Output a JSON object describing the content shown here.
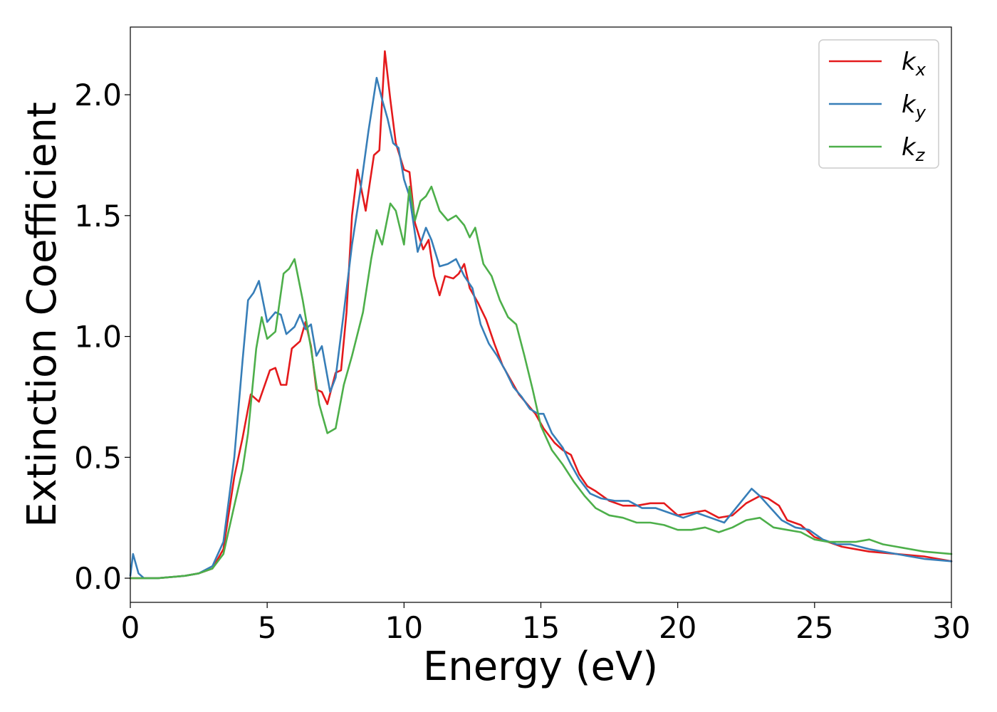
{
  "chart_data": {
    "type": "line",
    "xlabel": "Energy (eV)",
    "ylabel": "Extinction Coefficient",
    "xlim": [
      0,
      30
    ],
    "ylim": [
      -0.1,
      2.28
    ],
    "x_ticks": [
      "0",
      "5",
      "10",
      "15",
      "20",
      "25",
      "30"
    ],
    "x_tick_values": [
      0,
      5,
      10,
      15,
      20,
      25,
      30
    ],
    "y_ticks": [
      "0.0",
      "0.5",
      "1.0",
      "1.5",
      "2.0"
    ],
    "y_tick_values": [
      0,
      0.5,
      1.0,
      1.5,
      2.0
    ],
    "grid": false,
    "legend_position": "top-right",
    "series": [
      {
        "name": "k_x",
        "legend_base": "k",
        "legend_sub": "x",
        "color": "#e41a1c",
        "points": [
          [
            0,
            0.0
          ],
          [
            1,
            0.0
          ],
          [
            2,
            0.01
          ],
          [
            2.5,
            0.02
          ],
          [
            3,
            0.04
          ],
          [
            3.4,
            0.12
          ],
          [
            3.8,
            0.42
          ],
          [
            4.1,
            0.58
          ],
          [
            4.4,
            0.76
          ],
          [
            4.7,
            0.73
          ],
          [
            5.1,
            0.86
          ],
          [
            5.3,
            0.87
          ],
          [
            5.5,
            0.8
          ],
          [
            5.7,
            0.8
          ],
          [
            5.9,
            0.95
          ],
          [
            6.2,
            0.98
          ],
          [
            6.4,
            1.06
          ],
          [
            6.6,
            0.96
          ],
          [
            6.8,
            0.78
          ],
          [
            7.0,
            0.77
          ],
          [
            7.2,
            0.72
          ],
          [
            7.5,
            0.85
          ],
          [
            7.7,
            0.86
          ],
          [
            7.9,
            1.1
          ],
          [
            8.1,
            1.5
          ],
          [
            8.3,
            1.69
          ],
          [
            8.6,
            1.52
          ],
          [
            8.9,
            1.75
          ],
          [
            9.1,
            1.77
          ],
          [
            9.3,
            2.18
          ],
          [
            9.5,
            1.98
          ],
          [
            9.7,
            1.8
          ],
          [
            10.0,
            1.69
          ],
          [
            10.2,
            1.68
          ],
          [
            10.4,
            1.47
          ],
          [
            10.7,
            1.36
          ],
          [
            10.9,
            1.4
          ],
          [
            11.1,
            1.25
          ],
          [
            11.3,
            1.17
          ],
          [
            11.5,
            1.25
          ],
          [
            11.8,
            1.24
          ],
          [
            12.0,
            1.26
          ],
          [
            12.2,
            1.3
          ],
          [
            12.4,
            1.2
          ],
          [
            12.7,
            1.14
          ],
          [
            13.0,
            1.07
          ],
          [
            13.3,
            0.97
          ],
          [
            13.6,
            0.88
          ],
          [
            13.9,
            0.82
          ],
          [
            14.2,
            0.76
          ],
          [
            14.5,
            0.72
          ],
          [
            14.8,
            0.68
          ],
          [
            15.1,
            0.62
          ],
          [
            15.5,
            0.56
          ],
          [
            15.8,
            0.53
          ],
          [
            16.1,
            0.51
          ],
          [
            16.4,
            0.43
          ],
          [
            16.7,
            0.38
          ],
          [
            17.0,
            0.36
          ],
          [
            17.5,
            0.32
          ],
          [
            18.0,
            0.3
          ],
          [
            18.5,
            0.3
          ],
          [
            19.0,
            0.31
          ],
          [
            19.5,
            0.31
          ],
          [
            20.0,
            0.26
          ],
          [
            20.5,
            0.27
          ],
          [
            21.0,
            0.28
          ],
          [
            21.5,
            0.25
          ],
          [
            22.0,
            0.26
          ],
          [
            22.5,
            0.31
          ],
          [
            23.0,
            0.34
          ],
          [
            23.3,
            0.33
          ],
          [
            23.7,
            0.3
          ],
          [
            24.0,
            0.24
          ],
          [
            24.5,
            0.22
          ],
          [
            25.0,
            0.17
          ],
          [
            25.5,
            0.15
          ],
          [
            26.0,
            0.13
          ],
          [
            26.5,
            0.12
          ],
          [
            27.0,
            0.11
          ],
          [
            28.0,
            0.1
          ],
          [
            29.0,
            0.09
          ],
          [
            30.0,
            0.07
          ]
        ]
      },
      {
        "name": "k_y",
        "legend_base": "k",
        "legend_sub": "y",
        "color": "#377eb8",
        "points": [
          [
            0,
            0.01
          ],
          [
            0.1,
            0.1
          ],
          [
            0.3,
            0.02
          ],
          [
            0.5,
            0.0
          ],
          [
            1,
            0.0
          ],
          [
            2,
            0.01
          ],
          [
            2.5,
            0.02
          ],
          [
            3,
            0.05
          ],
          [
            3.4,
            0.15
          ],
          [
            3.8,
            0.5
          ],
          [
            4.1,
            0.9
          ],
          [
            4.3,
            1.15
          ],
          [
            4.5,
            1.18
          ],
          [
            4.7,
            1.23
          ],
          [
            5.0,
            1.06
          ],
          [
            5.3,
            1.1
          ],
          [
            5.5,
            1.09
          ],
          [
            5.7,
            1.01
          ],
          [
            6.0,
            1.04
          ],
          [
            6.2,
            1.09
          ],
          [
            6.4,
            1.03
          ],
          [
            6.6,
            1.05
          ],
          [
            6.8,
            0.92
          ],
          [
            7.0,
            0.96
          ],
          [
            7.3,
            0.77
          ],
          [
            7.5,
            0.83
          ],
          [
            7.8,
            1.1
          ],
          [
            8.1,
            1.38
          ],
          [
            8.4,
            1.6
          ],
          [
            8.7,
            1.85
          ],
          [
            9.0,
            2.07
          ],
          [
            9.2,
            1.98
          ],
          [
            9.4,
            1.9
          ],
          [
            9.6,
            1.8
          ],
          [
            9.8,
            1.78
          ],
          [
            10.0,
            1.65
          ],
          [
            10.2,
            1.58
          ],
          [
            10.5,
            1.35
          ],
          [
            10.8,
            1.45
          ],
          [
            11.0,
            1.4
          ],
          [
            11.3,
            1.29
          ],
          [
            11.6,
            1.3
          ],
          [
            11.9,
            1.32
          ],
          [
            12.2,
            1.25
          ],
          [
            12.5,
            1.2
          ],
          [
            12.8,
            1.05
          ],
          [
            13.1,
            0.97
          ],
          [
            13.4,
            0.92
          ],
          [
            13.7,
            0.86
          ],
          [
            14.0,
            0.79
          ],
          [
            14.3,
            0.75
          ],
          [
            14.6,
            0.7
          ],
          [
            14.9,
            0.68
          ],
          [
            15.1,
            0.68
          ],
          [
            15.4,
            0.6
          ],
          [
            15.8,
            0.54
          ],
          [
            16.1,
            0.47
          ],
          [
            16.4,
            0.41
          ],
          [
            16.8,
            0.35
          ],
          [
            17.2,
            0.33
          ],
          [
            17.7,
            0.32
          ],
          [
            18.2,
            0.32
          ],
          [
            18.7,
            0.29
          ],
          [
            19.2,
            0.29
          ],
          [
            19.7,
            0.27
          ],
          [
            20.2,
            0.25
          ],
          [
            20.7,
            0.27
          ],
          [
            21.2,
            0.25
          ],
          [
            21.7,
            0.23
          ],
          [
            22.2,
            0.3
          ],
          [
            22.7,
            0.37
          ],
          [
            23.0,
            0.34
          ],
          [
            23.4,
            0.29
          ],
          [
            23.8,
            0.24
          ],
          [
            24.3,
            0.21
          ],
          [
            24.8,
            0.2
          ],
          [
            25.3,
            0.16
          ],
          [
            25.8,
            0.14
          ],
          [
            26.3,
            0.14
          ],
          [
            27.0,
            0.12
          ],
          [
            28.0,
            0.1
          ],
          [
            29.0,
            0.08
          ],
          [
            30.0,
            0.07
          ]
        ]
      },
      {
        "name": "k_z",
        "legend_base": "k",
        "legend_sub": "z",
        "color": "#4daf4a",
        "points": [
          [
            0,
            0.0
          ],
          [
            1,
            0.0
          ],
          [
            2,
            0.01
          ],
          [
            2.5,
            0.02
          ],
          [
            3,
            0.04
          ],
          [
            3.4,
            0.1
          ],
          [
            3.8,
            0.3
          ],
          [
            4.1,
            0.45
          ],
          [
            4.3,
            0.6
          ],
          [
            4.6,
            0.95
          ],
          [
            4.8,
            1.08
          ],
          [
            5.0,
            0.99
          ],
          [
            5.3,
            1.02
          ],
          [
            5.6,
            1.26
          ],
          [
            5.8,
            1.28
          ],
          [
            6.0,
            1.32
          ],
          [
            6.3,
            1.15
          ],
          [
            6.6,
            0.95
          ],
          [
            6.9,
            0.72
          ],
          [
            7.2,
            0.6
          ],
          [
            7.5,
            0.62
          ],
          [
            7.8,
            0.8
          ],
          [
            8.1,
            0.92
          ],
          [
            8.5,
            1.1
          ],
          [
            8.8,
            1.32
          ],
          [
            9.0,
            1.44
          ],
          [
            9.2,
            1.38
          ],
          [
            9.5,
            1.55
          ],
          [
            9.7,
            1.52
          ],
          [
            10.0,
            1.38
          ],
          [
            10.2,
            1.62
          ],
          [
            10.4,
            1.48
          ],
          [
            10.6,
            1.56
          ],
          [
            10.8,
            1.58
          ],
          [
            11.0,
            1.62
          ],
          [
            11.3,
            1.52
          ],
          [
            11.6,
            1.48
          ],
          [
            11.9,
            1.5
          ],
          [
            12.2,
            1.46
          ],
          [
            12.4,
            1.41
          ],
          [
            12.6,
            1.45
          ],
          [
            12.9,
            1.3
          ],
          [
            13.2,
            1.25
          ],
          [
            13.5,
            1.15
          ],
          [
            13.8,
            1.08
          ],
          [
            14.1,
            1.05
          ],
          [
            14.4,
            0.92
          ],
          [
            14.7,
            0.78
          ],
          [
            15.0,
            0.63
          ],
          [
            15.4,
            0.53
          ],
          [
            15.8,
            0.47
          ],
          [
            16.2,
            0.4
          ],
          [
            16.6,
            0.34
          ],
          [
            17.0,
            0.29
          ],
          [
            17.5,
            0.26
          ],
          [
            18.0,
            0.25
          ],
          [
            18.5,
            0.23
          ],
          [
            19.0,
            0.23
          ],
          [
            19.5,
            0.22
          ],
          [
            20.0,
            0.2
          ],
          [
            20.5,
            0.2
          ],
          [
            21.0,
            0.21
          ],
          [
            21.5,
            0.19
          ],
          [
            22.0,
            0.21
          ],
          [
            22.5,
            0.24
          ],
          [
            23.0,
            0.25
          ],
          [
            23.5,
            0.21
          ],
          [
            24.0,
            0.2
          ],
          [
            24.5,
            0.19
          ],
          [
            25.0,
            0.16
          ],
          [
            25.5,
            0.15
          ],
          [
            26.0,
            0.15
          ],
          [
            26.5,
            0.15
          ],
          [
            27.0,
            0.16
          ],
          [
            27.5,
            0.14
          ],
          [
            28.0,
            0.13
          ],
          [
            29.0,
            0.11
          ],
          [
            30.0,
            0.1
          ]
        ]
      }
    ]
  }
}
